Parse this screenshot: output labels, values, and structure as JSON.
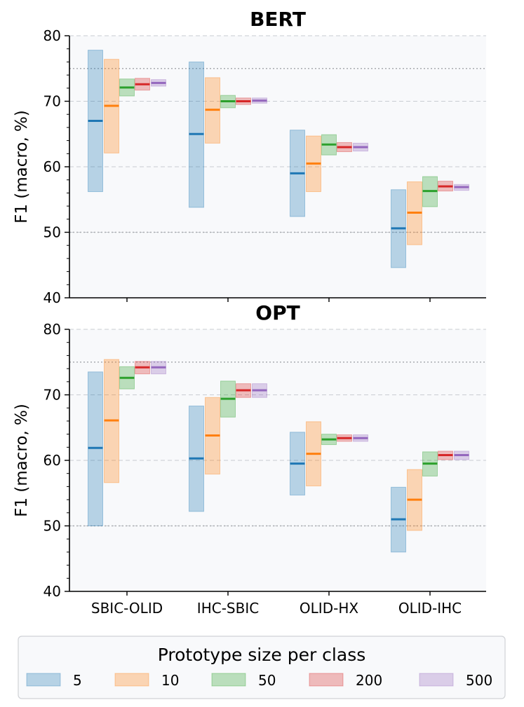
{
  "colors": {
    "5": "#1f77b4",
    "10": "#ff7f0e",
    "50": "#2ca02c",
    "200": "#d62728",
    "500": "#9467bd",
    "panel_bg": "#f8f9fb"
  },
  "legend": {
    "title": "Prototype size per class",
    "entries": [
      "5",
      "10",
      "50",
      "200",
      "500"
    ]
  },
  "chart_data": [
    {
      "type": "range-bar",
      "title": "BERT",
      "ylabel": "F1 (macro, %)",
      "xlabel": "",
      "ylim": [
        40,
        80
      ],
      "yticks": [
        40,
        50,
        60,
        70,
        80
      ],
      "reference_lines": [
        50,
        75
      ],
      "categories": [
        "SBIC-OLID",
        "IHC-SBIC",
        "OLID-HX",
        "OLID-IHC"
      ],
      "series": [
        {
          "name": "5",
          "mean": [
            67.0,
            65.0,
            59.0,
            50.6
          ],
          "low": [
            56.2,
            53.8,
            52.4,
            44.6
          ],
          "high": [
            77.8,
            76.0,
            65.6,
            56.5
          ]
        },
        {
          "name": "10",
          "mean": [
            69.3,
            68.7,
            60.5,
            53.0
          ],
          "low": [
            62.1,
            63.6,
            56.2,
            48.1
          ],
          "high": [
            76.4,
            73.6,
            64.7,
            57.7
          ]
        },
        {
          "name": "50",
          "mean": [
            72.1,
            70.0,
            63.4,
            56.3
          ],
          "low": [
            70.8,
            69.0,
            61.8,
            53.9
          ],
          "high": [
            73.4,
            70.9,
            64.9,
            58.5
          ]
        },
        {
          "name": "200",
          "mean": [
            72.6,
            70.0,
            63.0,
            57.0
          ],
          "low": [
            71.7,
            69.5,
            62.3,
            56.3
          ],
          "high": [
            73.5,
            70.5,
            63.7,
            57.8
          ]
        },
        {
          "name": "500",
          "mean": [
            72.8,
            70.1,
            63.0,
            56.9
          ],
          "low": [
            72.3,
            69.7,
            62.4,
            56.4
          ],
          "high": [
            73.3,
            70.5,
            63.6,
            57.3
          ]
        }
      ]
    },
    {
      "type": "range-bar",
      "title": "OPT",
      "ylabel": "F1 (macro, %)",
      "xlabel": "",
      "ylim": [
        40,
        80
      ],
      "yticks": [
        40,
        50,
        60,
        70,
        80
      ],
      "reference_lines": [
        50,
        75
      ],
      "categories": [
        "SBIC-OLID",
        "IHC-SBIC",
        "OLID-HX",
        "OLID-IHC"
      ],
      "series": [
        {
          "name": "5",
          "mean": [
            61.9,
            60.3,
            59.5,
            51.0
          ],
          "low": [
            50.0,
            52.2,
            54.7,
            46.0
          ],
          "high": [
            73.5,
            68.3,
            64.3,
            55.9
          ]
        },
        {
          "name": "10",
          "mean": [
            66.1,
            63.8,
            61.0,
            54.0
          ],
          "low": [
            56.6,
            57.9,
            56.1,
            49.3
          ],
          "high": [
            75.4,
            69.6,
            65.9,
            58.6
          ]
        },
        {
          "name": "50",
          "mean": [
            72.6,
            69.4,
            63.2,
            59.5
          ],
          "low": [
            70.9,
            66.6,
            62.4,
            57.6
          ],
          "high": [
            74.3,
            72.1,
            64.0,
            61.3
          ]
        },
        {
          "name": "200",
          "mean": [
            74.2,
            70.7,
            63.4,
            60.8
          ],
          "low": [
            73.2,
            69.6,
            62.9,
            60.1
          ],
          "high": [
            75.1,
            71.7,
            63.9,
            61.4
          ]
        },
        {
          "name": "500",
          "mean": [
            74.2,
            70.7,
            63.4,
            60.8
          ],
          "low": [
            73.2,
            69.6,
            62.9,
            60.1
          ],
          "high": [
            75.1,
            71.7,
            63.9,
            61.4
          ]
        }
      ]
    }
  ]
}
